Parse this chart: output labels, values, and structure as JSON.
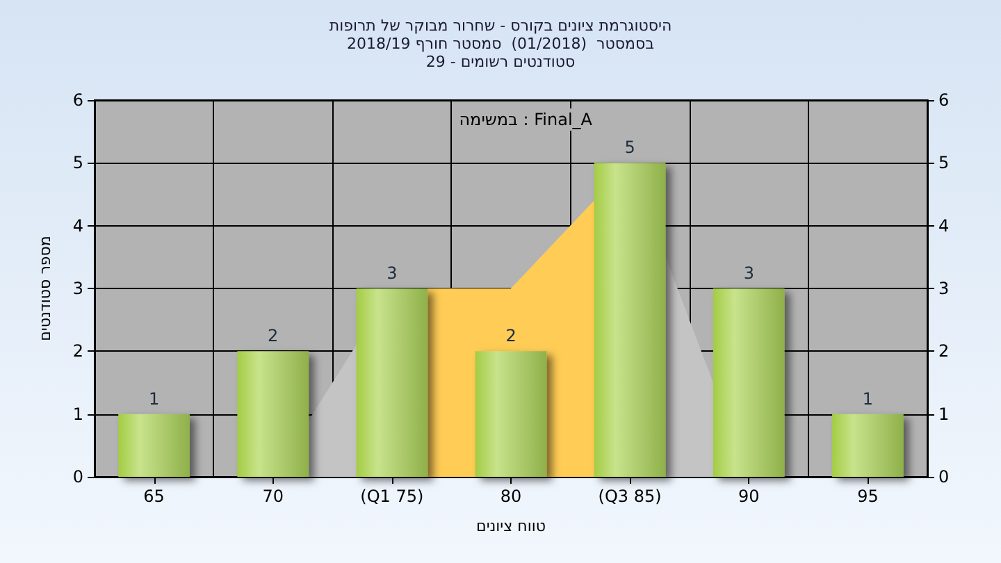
{
  "chart_data": {
    "type": "bar",
    "title": "היסטוגרמת ציונים בקורס - שחרור מבוקר של תרופות",
    "subtitle": "בסמסטר  (01/2018)  סמסטר חורף 2018/19\nסטודנטים רשומים - 29",
    "xlabel": "טווח ציונים",
    "ylabel": "מספר סטודנטים",
    "categories": [
      "65",
      "70",
      "(Q1 75)",
      "80",
      "(Q3 85)",
      "90",
      "95"
    ],
    "series": [
      {
        "type": "area",
        "color": "#c4c4c4",
        "values": [
          null,
          0,
          3,
          3,
          5,
          0,
          null
        ]
      },
      {
        "type": "area",
        "color": "#ffcc55",
        "values": [
          null,
          null,
          3,
          3,
          5,
          null,
          null
        ]
      },
      {
        "color": "#8fb04a",
        "values": [
          1,
          2,
          3,
          2,
          5,
          3,
          1
        ],
        "value_labels": [
          "1",
          "2",
          "3",
          "2",
          "5",
          "3",
          "1"
        ]
      }
    ],
    "ylim": [
      0,
      6
    ],
    "yticks": [
      0,
      1,
      2,
      3,
      4,
      5,
      6
    ],
    "y2lim": [
      0,
      6
    ],
    "y2ticks": [
      0,
      1,
      2,
      3,
      4,
      5,
      6
    ],
    "grid": true,
    "annotations": [
      "במשימה : Final_A"
    ]
  }
}
